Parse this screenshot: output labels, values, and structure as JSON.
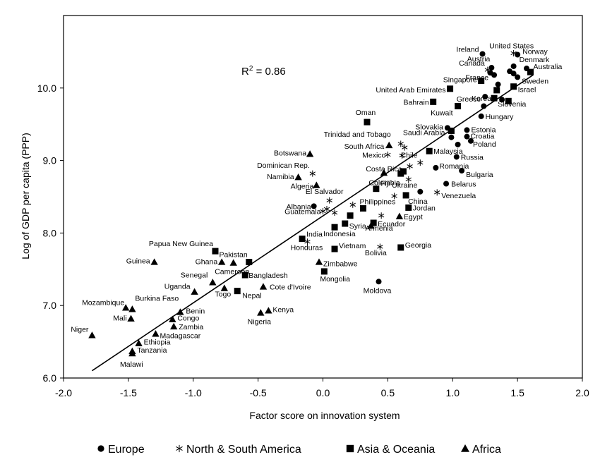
{
  "chart_data": {
    "type": "scatter",
    "title": "",
    "xlabel": "Factor score on innovation system",
    "ylabel": "Log of GDP per capita  (PPP)",
    "xlim": [
      -2.0,
      2.0
    ],
    "ylim": [
      6.0,
      11.0
    ],
    "xticks": [
      "-2.0",
      "-1.5",
      "-1.0",
      "-0.5",
      "0.0",
      "0.5",
      "1.0",
      "1.5",
      "2.0"
    ],
    "yticks": [
      "6.0",
      "7.0",
      "8.0",
      "9.0",
      "10.0"
    ],
    "annotation": {
      "prefix": "R",
      "sup": "2",
      "suffix": " = 0.86"
    },
    "trendline": {
      "x": [
        -1.78,
        1.62
      ],
      "y": [
        6.1,
        10.18
      ]
    },
    "legend": {
      "position": "bottom"
    },
    "series": [
      {
        "name": "Europe",
        "marker": "circle",
        "points": [
          {
            "label": "Ireland",
            "x": 1.23,
            "y": 10.47
          },
          {
            "label": "Norway",
            "x": 1.5,
            "y": 10.46
          },
          {
            "label": "Austria",
            "x": 1.3,
            "y": 10.28
          },
          {
            "label": "Denmark",
            "x": 1.47,
            "y": 10.3
          },
          {
            "label": "France",
            "x": 1.32,
            "y": 10.18
          },
          {
            "label": "Sweden",
            "x": 1.5,
            "y": 10.15
          },
          {
            "label": "",
            "x": 1.44,
            "y": 10.23
          },
          {
            "label": "",
            "x": 1.47,
            "y": 10.2
          },
          {
            "label": "",
            "x": 1.35,
            "y": 10.05
          },
          {
            "label": "",
            "x": 1.57,
            "y": 10.27
          },
          {
            "label": "",
            "x": 1.29,
            "y": 10.21
          },
          {
            "label": "Greece",
            "x": 1.25,
            "y": 9.88
          },
          {
            "label": "Slovenia",
            "x": 1.38,
            "y": 9.84
          },
          {
            "label": "",
            "x": 1.24,
            "y": 9.75
          },
          {
            "label": "Hungary",
            "x": 1.22,
            "y": 9.61
          },
          {
            "label": "Slovakia",
            "x": 0.96,
            "y": 9.45
          },
          {
            "label": "Estonia",
            "x": 1.11,
            "y": 9.42
          },
          {
            "label": "Croatia",
            "x": 1.11,
            "y": 9.33
          },
          {
            "label": "",
            "x": 0.99,
            "y": 9.32
          },
          {
            "label": "Poland",
            "x": 1.14,
            "y": 9.27
          },
          {
            "label": "",
            "x": 1.04,
            "y": 9.22
          },
          {
            "label": "Russia",
            "x": 1.03,
            "y": 9.05
          },
          {
            "label": "Romania",
            "x": 0.87,
            "y": 8.9
          },
          {
            "label": "Bulgaria",
            "x": 1.07,
            "y": 8.86
          },
          {
            "label": "Belarus",
            "x": 0.95,
            "y": 8.68
          },
          {
            "label": "Ukraine",
            "x": 0.75,
            "y": 8.57
          },
          {
            "label": "Albania",
            "x": -0.07,
            "y": 8.37
          },
          {
            "label": "Moldova",
            "x": 0.43,
            "y": 7.33
          }
        ]
      },
      {
        "name": "North & South America",
        "marker": "asterisk",
        "points": [
          {
            "label": "United States",
            "x": 1.47,
            "y": 10.48
          },
          {
            "label": "Canada",
            "x": 1.27,
            "y": 10.25
          },
          {
            "label": "Trinidad and Tobago",
            "x": 0.6,
            "y": 9.23
          },
          {
            "label": "",
            "x": 0.63,
            "y": 9.18
          },
          {
            "label": "Mexico",
            "x": 0.5,
            "y": 9.08
          },
          {
            "label": "Chile",
            "x": 0.61,
            "y": 9.07
          },
          {
            "label": "Costa Rica",
            "x": 0.67,
            "y": 8.92
          },
          {
            "label": "Colombia",
            "x": 0.66,
            "y": 8.74
          },
          {
            "label": "",
            "x": 0.75,
            "y": 8.97
          },
          {
            "label": "Dominican Rep.",
            "x": -0.08,
            "y": 8.82
          },
          {
            "label": "Venezuela",
            "x": 0.88,
            "y": 8.56
          },
          {
            "label": "El Salvador",
            "x": 0.05,
            "y": 8.45
          },
          {
            "label": "Guatemala",
            "x": 0.0,
            "y": 8.3
          },
          {
            "label": "",
            "x": 0.03,
            "y": 8.33
          },
          {
            "label": "",
            "x": 0.09,
            "y": 8.28
          },
          {
            "label": "",
            "x": 0.23,
            "y": 8.39
          },
          {
            "label": "",
            "x": 0.55,
            "y": 8.51
          },
          {
            "label": "",
            "x": 0.45,
            "y": 8.24
          },
          {
            "label": "Honduras",
            "x": -0.12,
            "y": 7.88
          },
          {
            "label": "Bolivia",
            "x": 0.44,
            "y": 7.81
          }
        ]
      },
      {
        "name": "Asia & Oceania",
        "marker": "square",
        "points": [
          {
            "label": "Australia",
            "x": 1.6,
            "y": 10.22
          },
          {
            "label": "Singapore",
            "x": 1.22,
            "y": 10.1
          },
          {
            "label": "United Arab Emirates",
            "x": 0.98,
            "y": 9.99
          },
          {
            "label": "Israel",
            "x": 1.47,
            "y": 10.02
          },
          {
            "label": "",
            "x": 1.34,
            "y": 9.97
          },
          {
            "label": "Korea",
            "x": 1.32,
            "y": 9.86
          },
          {
            "label": "",
            "x": 1.43,
            "y": 9.82
          },
          {
            "label": "Bahrain",
            "x": 0.85,
            "y": 9.81
          },
          {
            "label": "Kuwait",
            "x": 1.04,
            "y": 9.75
          },
          {
            "label": "Oman",
            "x": 0.34,
            "y": 9.53
          },
          {
            "label": "Saudi Arabia",
            "x": 0.99,
            "y": 9.41
          },
          {
            "label": "Malaysia",
            "x": 0.82,
            "y": 9.13
          },
          {
            "label": "",
            "x": 0.62,
            "y": 8.85
          },
          {
            "label": "",
            "x": 0.6,
            "y": 8.82
          },
          {
            "label": "Fiji",
            "x": 0.41,
            "y": 8.61
          },
          {
            "label": "China",
            "x": 0.64,
            "y": 8.52
          },
          {
            "label": "Jordan",
            "x": 0.66,
            "y": 8.35
          },
          {
            "label": "Philippines",
            "x": 0.31,
            "y": 8.34
          },
          {
            "label": "",
            "x": 0.21,
            "y": 8.24
          },
          {
            "label": "Syria",
            "x": 0.17,
            "y": 8.13
          },
          {
            "label": "Ecuador",
            "x": 0.39,
            "y": 8.14
          },
          {
            "label": "Indonesia",
            "x": 0.09,
            "y": 8.08
          },
          {
            "label": "India",
            "x": -0.16,
            "y": 7.92
          },
          {
            "label": "Vietnam",
            "x": 0.09,
            "y": 7.78
          },
          {
            "label": "Georgia",
            "x": 0.6,
            "y": 7.8
          },
          {
            "label": "Papua New Guinea",
            "x": -0.83,
            "y": 7.75
          },
          {
            "label": "Pakistan",
            "x": -0.57,
            "y": 7.6
          },
          {
            "label": "Bangladesh",
            "x": -0.6,
            "y": 7.42
          },
          {
            "label": "Mongolia",
            "x": 0.01,
            "y": 7.47
          },
          {
            "label": "Nepal",
            "x": -0.66,
            "y": 7.2
          }
        ]
      },
      {
        "name": "Africa",
        "marker": "triangle",
        "points": [
          {
            "label": "Botswana",
            "x": -0.1,
            "y": 9.09
          },
          {
            "label": "South Africa",
            "x": 0.51,
            "y": 9.21
          },
          {
            "label": "Namibia",
            "x": -0.19,
            "y": 8.77
          },
          {
            "label": "Algeria",
            "x": -0.05,
            "y": 8.66
          },
          {
            "label": "",
            "x": 0.47,
            "y": 8.83
          },
          {
            "label": "Egypt",
            "x": 0.59,
            "y": 8.23
          },
          {
            "label": "Armenia",
            "x": 0.37,
            "y": 8.1
          },
          {
            "label": "Zimbabwe",
            "x": -0.03,
            "y": 7.6
          },
          {
            "label": "Guinea",
            "x": -1.3,
            "y": 7.6
          },
          {
            "label": "Ghana",
            "x": -0.78,
            "y": 7.6
          },
          {
            "label": "Cameroon",
            "x": -0.69,
            "y": 7.59
          },
          {
            "label": "Senegal",
            "x": -0.85,
            "y": 7.32
          },
          {
            "label": "Uganda",
            "x": -0.99,
            "y": 7.19
          },
          {
            "label": "Togo",
            "x": -0.76,
            "y": 7.24
          },
          {
            "label": "Cote d'Ivoire",
            "x": -0.46,
            "y": 7.26
          },
          {
            "label": "Burkina Faso",
            "x": -1.47,
            "y": 6.95
          },
          {
            "label": "Mozambique",
            "x": -1.52,
            "y": 6.97
          },
          {
            "label": "Mali",
            "x": -1.48,
            "y": 6.82
          },
          {
            "label": "Benin",
            "x": -1.1,
            "y": 6.91
          },
          {
            "label": "Congo",
            "x": -1.16,
            "y": 6.81
          },
          {
            "label": "Zambia",
            "x": -1.15,
            "y": 6.71
          },
          {
            "label": "Madagascar",
            "x": -1.29,
            "y": 6.61
          },
          {
            "label": "Kenya",
            "x": -0.42,
            "y": 6.93
          },
          {
            "label": "Nigeria",
            "x": -0.48,
            "y": 6.9
          },
          {
            "label": "Niger",
            "x": -1.78,
            "y": 6.59
          },
          {
            "label": "Ethiopia",
            "x": -1.42,
            "y": 6.48
          },
          {
            "label": "Tanzania",
            "x": -1.47,
            "y": 6.37
          },
          {
            "label": "Malawi",
            "x": -1.47,
            "y": 6.34
          }
        ]
      }
    ]
  }
}
